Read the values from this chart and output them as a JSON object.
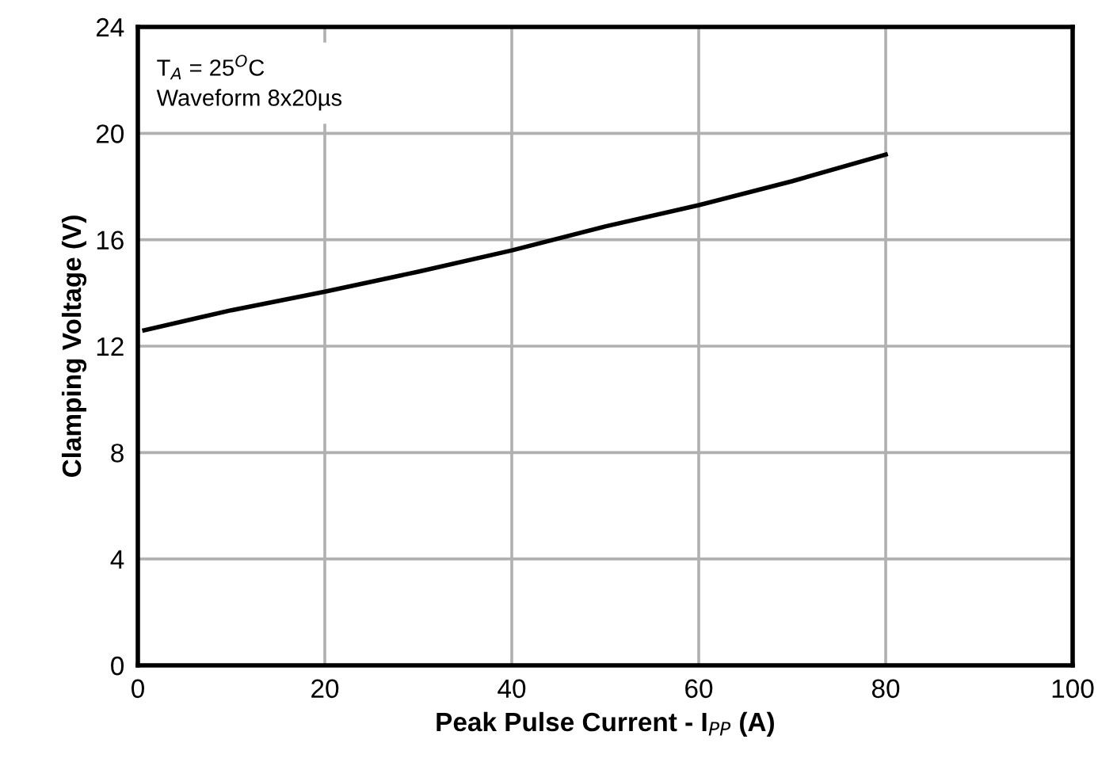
{
  "chart_data": {
    "type": "line",
    "xlabel": "Peak Pulse Current - I$_{PP}$ (A)",
    "ylabel": "Clamping Voltage (V)",
    "annotations": [
      "T$_{A}$ = 25$^{O}$C\nWaveform 8x20µs"
    ],
    "series": [
      {
        "color": "#000000",
        "x": [
          0.7,
          10,
          20,
          30,
          40,
          50,
          60,
          70,
          80
        ],
        "values": [
          12.6,
          13.35,
          14.05,
          14.8,
          15.6,
          16.5,
          17.3,
          18.2,
          19.2
        ]
      }
    ],
    "xlim": [
      0,
      100
    ],
    "xticks": [
      0,
      20,
      40,
      60,
      80,
      100
    ],
    "ylim": [
      0,
      24
    ],
    "yticks": [
      0,
      4,
      8,
      12,
      16,
      20,
      24
    ],
    "grid": true,
    "marker": "none",
    "line_style": "solid"
  }
}
